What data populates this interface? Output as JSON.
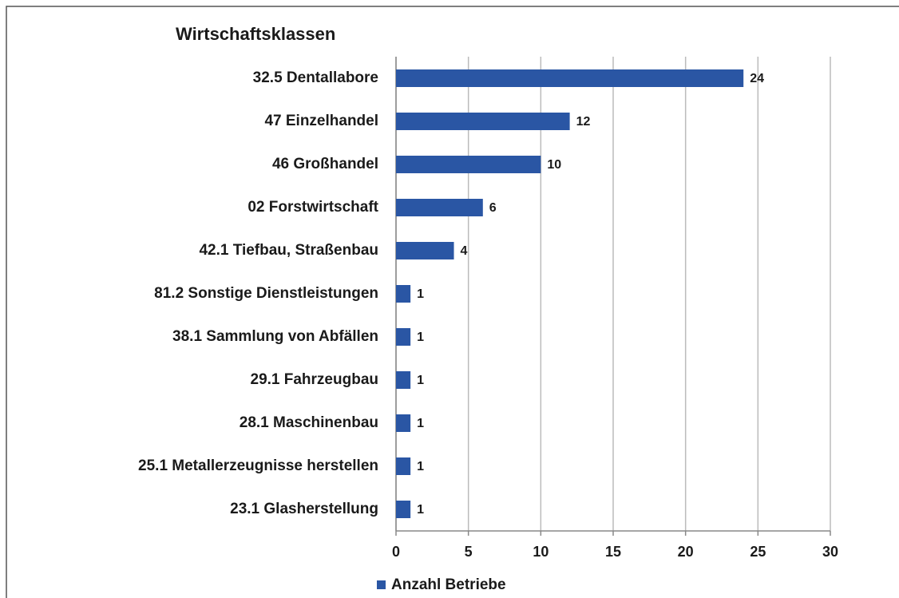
{
  "chart_data": {
    "type": "barh",
    "title": "Wirtschaftsklassen",
    "categories": [
      "32.5 Dentallabore",
      "47 Einzelhandel",
      "46 Großhandel",
      "02 Forstwirtschaft",
      "42.1 Tiefbau, Straßenbau",
      "81.2 Sonstige Dienstleistungen",
      "38.1 Sammlung von Abfällen",
      "29.1 Fahrzeugbau",
      "28.1 Maschinenbau",
      "25.1 Metallerzeugnisse herstellen",
      "23.1 Glasherstellung"
    ],
    "series": [
      {
        "name": "Anzahl Betriebe",
        "color": "#2a56a4",
        "values": [
          24,
          12,
          10,
          6,
          4,
          1,
          1,
          1,
          1,
          1,
          1
        ]
      }
    ],
    "xlim": [
      0,
      30
    ],
    "xticks": [
      0,
      5,
      10,
      15,
      20,
      25,
      30
    ],
    "grid": true,
    "legend": "bottom"
  }
}
